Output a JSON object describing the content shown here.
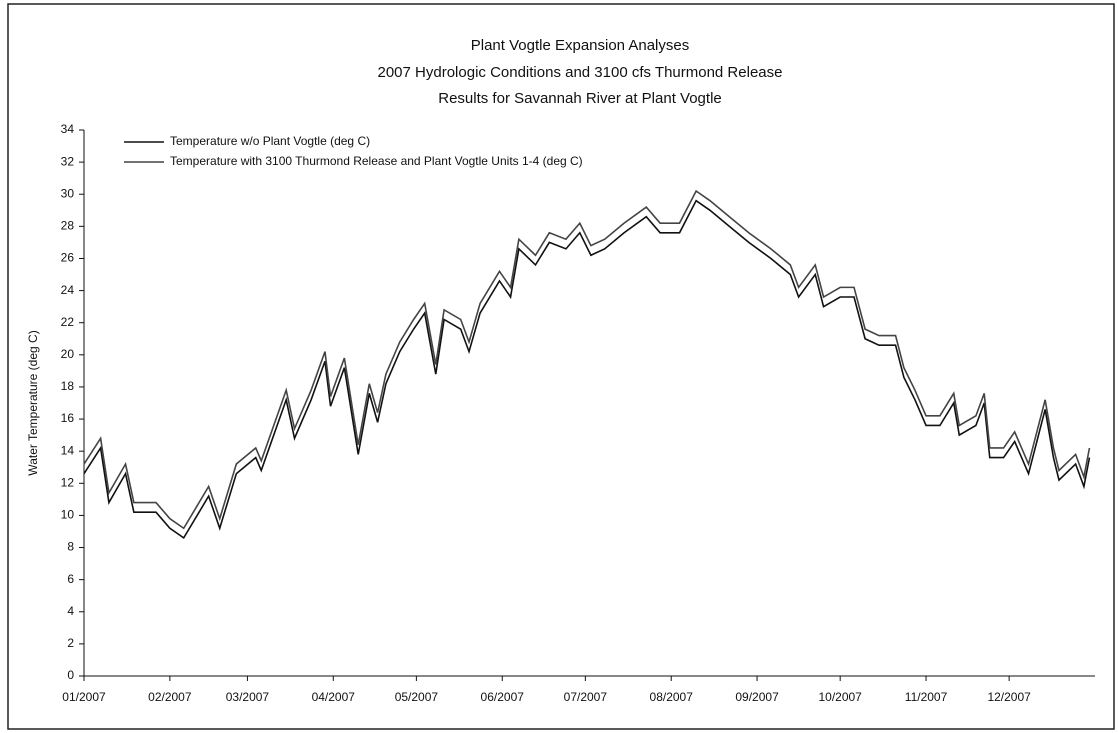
{
  "chart_data": {
    "type": "line",
    "title": [
      "Plant Vogtle Expansion Analyses",
      "2007 Hydrologic Conditions and 3100 cfs Thurmond Release",
      "Results for Savannah River at Plant Vogtle"
    ],
    "y_label": "Water Temperature (deg C)",
    "x": [
      0,
      6,
      9,
      15,
      18,
      26,
      31,
      36,
      45,
      49,
      55,
      62,
      64,
      73,
      76,
      82,
      87,
      89,
      94,
      99,
      103,
      106,
      109,
      114,
      119,
      123,
      127,
      130,
      136,
      139,
      143,
      150,
      154,
      157,
      163,
      168,
      174,
      179,
      183,
      188,
      195,
      203,
      208,
      215,
      221,
      226,
      233,
      240,
      248,
      255,
      258,
      264,
      267,
      273,
      278,
      282,
      287,
      293,
      296,
      300,
      304,
      309,
      314,
      316,
      322,
      325,
      327,
      332,
      336,
      341,
      347,
      350,
      352,
      358,
      361,
      363
    ],
    "series": [
      {
        "name": "Temperature w/o Plant Vogtle (deg C)",
        "color": "#111111",
        "values": [
          12.6,
          14.2,
          10.8,
          12.6,
          10.2,
          10.2,
          9.2,
          8.6,
          11.2,
          9.2,
          12.6,
          13.6,
          12.8,
          17.2,
          14.8,
          17.2,
          19.6,
          16.8,
          19.2,
          13.8,
          17.6,
          15.8,
          18.2,
          20.2,
          21.6,
          22.6,
          18.8,
          22.2,
          21.6,
          20.2,
          22.6,
          24.6,
          23.6,
          26.6,
          25.6,
          27.0,
          26.6,
          27.6,
          26.2,
          26.6,
          27.6,
          28.6,
          27.6,
          27.6,
          29.6,
          29.0,
          28.0,
          27.0,
          26.0,
          25.0,
          23.6,
          25.0,
          23.0,
          23.6,
          23.6,
          21.0,
          20.6,
          20.6,
          18.6,
          17.2,
          15.6,
          15.6,
          17.0,
          15.0,
          15.6,
          17.0,
          13.6,
          13.6,
          14.6,
          12.6,
          16.6,
          13.6,
          12.2,
          13.2,
          11.8,
          13.6
        ]
      },
      {
        "name": "Temperature with 3100 Thurmond Release and Plant Vogtle Units 1-4  (deg C)",
        "color": "#444444",
        "values": [
          13.2,
          14.8,
          11.4,
          13.2,
          10.8,
          10.8,
          9.8,
          9.2,
          11.8,
          9.8,
          13.2,
          14.2,
          13.4,
          17.8,
          15.4,
          17.8,
          20.2,
          17.4,
          19.8,
          14.4,
          18.2,
          16.4,
          18.8,
          20.8,
          22.2,
          23.2,
          19.4,
          22.8,
          22.2,
          20.8,
          23.2,
          25.2,
          24.2,
          27.2,
          26.2,
          27.6,
          27.2,
          28.2,
          26.8,
          27.2,
          28.2,
          29.2,
          28.2,
          28.2,
          30.2,
          29.6,
          28.6,
          27.6,
          26.6,
          25.6,
          24.2,
          25.6,
          23.6,
          24.2,
          24.2,
          21.6,
          21.2,
          21.2,
          19.2,
          17.8,
          16.2,
          16.2,
          17.6,
          15.6,
          16.2,
          17.6,
          14.2,
          14.2,
          15.2,
          13.2,
          17.2,
          14.2,
          12.8,
          13.8,
          12.4,
          14.2
        ]
      }
    ],
    "xlim": [
      0,
      365
    ],
    "xticks": [
      {
        "value": 0,
        "label": "01/2007"
      },
      {
        "value": 31,
        "label": "02/2007"
      },
      {
        "value": 59,
        "label": "03/2007"
      },
      {
        "value": 90,
        "label": "04/2007"
      },
      {
        "value": 120,
        "label": "05/2007"
      },
      {
        "value": 151,
        "label": "06/2007"
      },
      {
        "value": 181,
        "label": "07/2007"
      },
      {
        "value": 212,
        "label": "08/2007"
      },
      {
        "value": 243,
        "label": "09/2007"
      },
      {
        "value": 273,
        "label": "10/2007"
      },
      {
        "value": 304,
        "label": "11/2007"
      },
      {
        "value": 334,
        "label": "12/2007"
      }
    ],
    "ylim": [
      0,
      34
    ],
    "yticks": [
      0,
      2,
      4,
      6,
      8,
      10,
      12,
      14,
      16,
      18,
      20,
      22,
      24,
      26,
      28,
      30,
      32,
      34
    ],
    "legend": "upper left",
    "grid": false
  }
}
